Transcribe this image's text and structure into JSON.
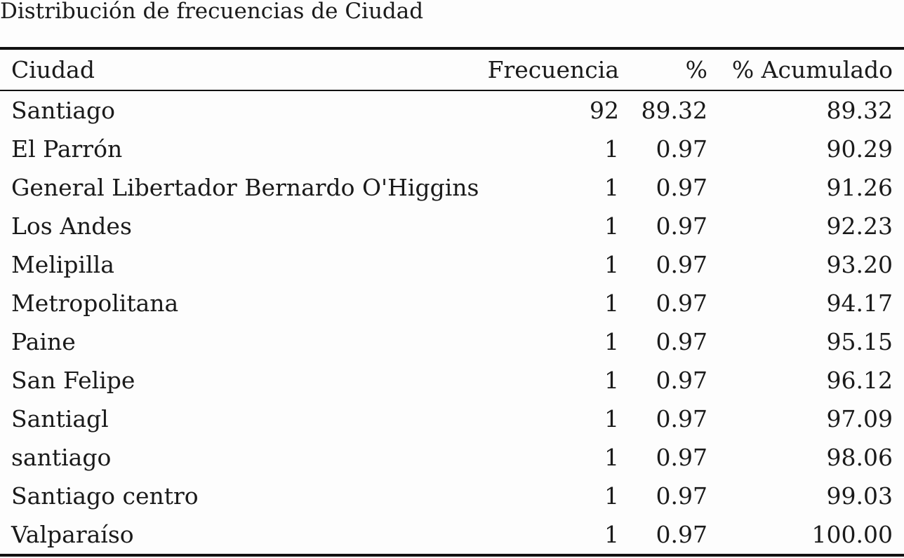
{
  "caption": "Distribución de frecuencias de Ciudad",
  "table": {
    "headers": [
      "Ciudad",
      "Frecuencia",
      "%",
      "% Acumulado"
    ],
    "rows": [
      {
        "ciudad": "Santiago",
        "frecuencia": "92",
        "pct": "89.32",
        "acum": "89.32"
      },
      {
        "ciudad": "El Parrón",
        "frecuencia": "1",
        "pct": "0.97",
        "acum": "90.29"
      },
      {
        "ciudad": "General Libertador Bernardo O'Higgins",
        "frecuencia": "1",
        "pct": "0.97",
        "acum": "91.26"
      },
      {
        "ciudad": "Los Andes",
        "frecuencia": "1",
        "pct": "0.97",
        "acum": "92.23"
      },
      {
        "ciudad": "Melipilla",
        "frecuencia": "1",
        "pct": "0.97",
        "acum": "93.20"
      },
      {
        "ciudad": "Metropolitana",
        "frecuencia": "1",
        "pct": "0.97",
        "acum": "94.17"
      },
      {
        "ciudad": "Paine",
        "frecuencia": "1",
        "pct": "0.97",
        "acum": "95.15"
      },
      {
        "ciudad": "San Felipe",
        "frecuencia": "1",
        "pct": "0.97",
        "acum": "96.12"
      },
      {
        "ciudad": "Santiagl",
        "frecuencia": "1",
        "pct": "0.97",
        "acum": "97.09"
      },
      {
        "ciudad": "santiago",
        "frecuencia": "1",
        "pct": "0.97",
        "acum": "98.06"
      },
      {
        "ciudad": "Santiago centro",
        "frecuencia": "1",
        "pct": "0.97",
        "acum": "99.03"
      },
      {
        "ciudad": "Valparaíso",
        "frecuencia": "1",
        "pct": "0.97",
        "acum": "100.00"
      }
    ]
  }
}
